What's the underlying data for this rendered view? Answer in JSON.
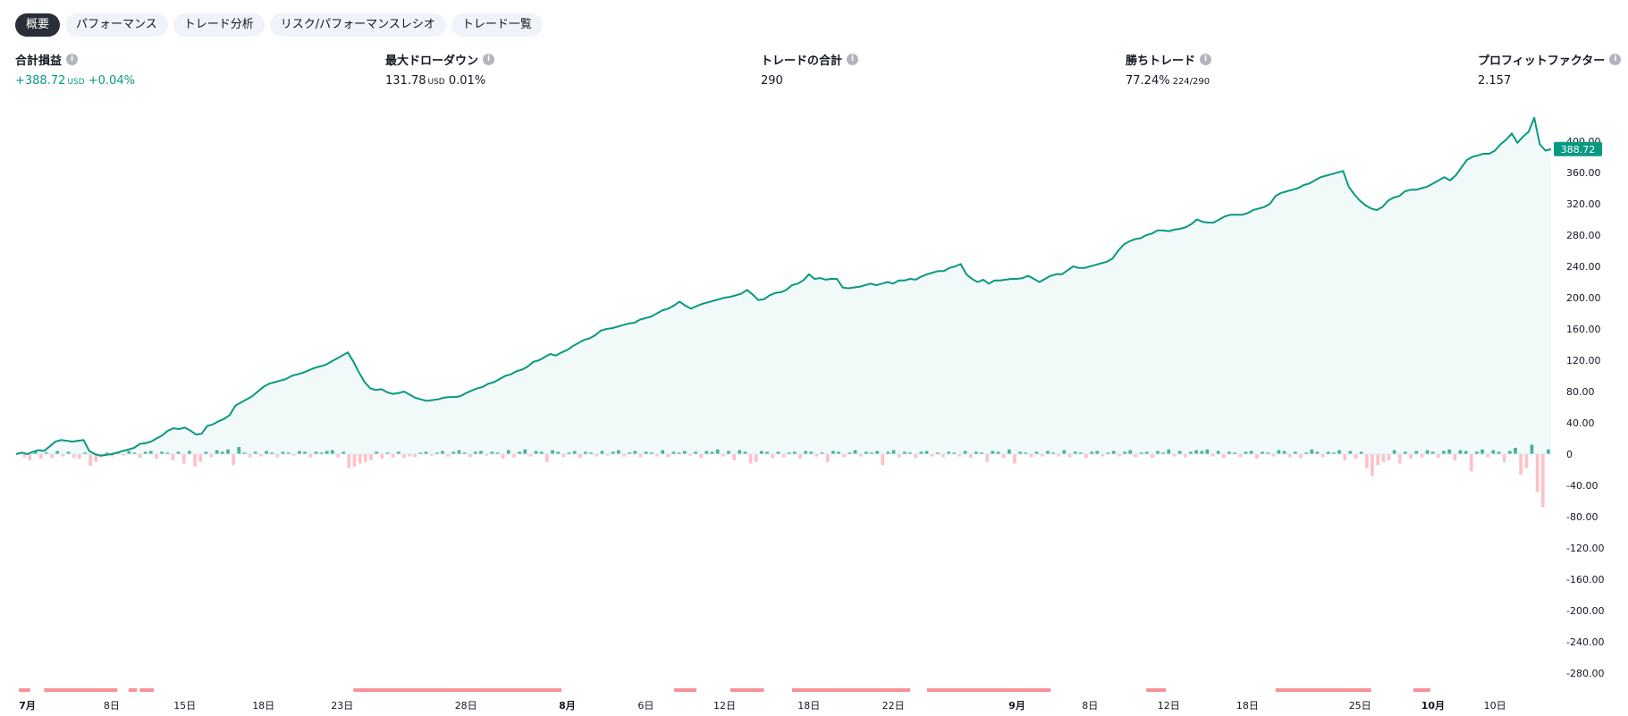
{
  "tabs": [
    {
      "label": "概要",
      "active": true
    },
    {
      "label": "パフォーマンス",
      "active": false
    },
    {
      "label": "トレード分析",
      "active": false
    },
    {
      "label": "リスク/パフォーマンスレシオ",
      "active": false
    },
    {
      "label": "トレード一覧",
      "active": false
    }
  ],
  "metrics": {
    "net_profit": {
      "title": "合計損益",
      "value": "+388.72",
      "unit": "USD",
      "pct": "+0.04%"
    },
    "max_drawdown": {
      "title": "最大ドローダウン",
      "value": "131.78",
      "unit": "USD",
      "pct": "0.01%"
    },
    "total_trades": {
      "title": "トレードの合計",
      "value": "290"
    },
    "winning_trades": {
      "title": "勝ちトレード",
      "value": "77.24%",
      "detail": "224/290"
    },
    "profit_factor": {
      "title": "プロフィットファクター",
      "value": "2.157"
    }
  },
  "colors": {
    "accent": "#089981",
    "loss": "#f23645",
    "tab_active": "#2a2e39"
  },
  "icons": {
    "info": "info-icon"
  },
  "chart_data": {
    "type": "line",
    "ylim": [
      -300,
      430
    ],
    "yticks": [
      "400.00",
      "360.00",
      "320.00",
      "280.00",
      "240.00",
      "200.00",
      "160.00",
      "120.00",
      "80.00",
      "40.00",
      "0",
      "-40.00",
      "-80.00",
      "-120.00",
      "-160.00",
      "-200.00",
      "-240.00",
      "-280.00"
    ],
    "ytick_values": [
      400,
      360,
      320,
      280,
      240,
      200,
      160,
      120,
      80,
      40,
      0,
      -40,
      -80,
      -120,
      -160,
      -200,
      -240,
      -280
    ],
    "xticks": [
      {
        "label": "7月",
        "bold": true,
        "index": 2
      },
      {
        "label": "8日",
        "bold": false,
        "index": 17
      },
      {
        "label": "15日",
        "bold": false,
        "index": 30
      },
      {
        "label": "18日",
        "bold": false,
        "index": 44
      },
      {
        "label": "23日",
        "bold": false,
        "index": 58
      },
      {
        "label": "28日",
        "bold": false,
        "index": 80
      },
      {
        "label": "8月",
        "bold": true,
        "index": 98
      },
      {
        "label": "6日",
        "bold": false,
        "index": 112
      },
      {
        "label": "12日",
        "bold": false,
        "index": 126
      },
      {
        "label": "18日",
        "bold": false,
        "index": 141
      },
      {
        "label": "22日",
        "bold": false,
        "index": 156
      },
      {
        "label": "9月",
        "bold": true,
        "index": 178
      },
      {
        "label": "8日",
        "bold": false,
        "index": 191
      },
      {
        "label": "12日",
        "bold": false,
        "index": 205
      },
      {
        "label": "18日",
        "bold": false,
        "index": 219
      },
      {
        "label": "25日",
        "bold": false,
        "index": 239
      },
      {
        "label": "10月",
        "bold": true,
        "index": 252
      },
      {
        "label": "10日",
        "bold": false,
        "index": 263
      }
    ],
    "equity": [
      0,
      2,
      0,
      3,
      5,
      4,
      10,
      16,
      18,
      17,
      16,
      17,
      18,
      4,
      0,
      -2,
      -1,
      0,
      2,
      4,
      6,
      8,
      13,
      14,
      16,
      20,
      24,
      30,
      33,
      32,
      34,
      30,
      25,
      26,
      36,
      38,
      42,
      45,
      50,
      62,
      66,
      70,
      74,
      80,
      86,
      90,
      92,
      94,
      96,
      100,
      102,
      104,
      107,
      110,
      112,
      114,
      118,
      122,
      126,
      130,
      118,
      104,
      92,
      84,
      82,
      83,
      79,
      77,
      78,
      80,
      76,
      72,
      70,
      68,
      69,
      70,
      72,
      73,
      73,
      74,
      78,
      81,
      84,
      86,
      90,
      92,
      96,
      100,
      102,
      106,
      108,
      112,
      118,
      120,
      124,
      128,
      126,
      130,
      133,
      138,
      142,
      146,
      148,
      152,
      158,
      160,
      161,
      163,
      165,
      167,
      168,
      172,
      174,
      176,
      180,
      184,
      186,
      190,
      195,
      190,
      186,
      189,
      192,
      194,
      196,
      198,
      200,
      201,
      203,
      205,
      210,
      204,
      197,
      198,
      203,
      206,
      207,
      210,
      216,
      218,
      222,
      230,
      224,
      225,
      223,
      224,
      224,
      213,
      212,
      213,
      214,
      216,
      218,
      216,
      218,
      220,
      218,
      222,
      222,
      224,
      223,
      227,
      230,
      232,
      234,
      234,
      238,
      240,
      243,
      230,
      224,
      220,
      223,
      218,
      222,
      222,
      223,
      224,
      224,
      225,
      228,
      224,
      220,
      224,
      228,
      230,
      230,
      235,
      240,
      238,
      238,
      240,
      242,
      244,
      246,
      250,
      260,
      268,
      272,
      275,
      276,
      280,
      282,
      286,
      286,
      285,
      287,
      288,
      290,
      294,
      300,
      297,
      296,
      296,
      300,
      304,
      306,
      306,
      306,
      308,
      312,
      314,
      316,
      320,
      330,
      334,
      336,
      338,
      340,
      344,
      346,
      350,
      354,
      356,
      358,
      360,
      362,
      342,
      332,
      324,
      318,
      314,
      312,
      316,
      324,
      328,
      330,
      336,
      338,
      338,
      340,
      342,
      346,
      350,
      354,
      350,
      356,
      366,
      376,
      380,
      382,
      384,
      384,
      388,
      396,
      402,
      410,
      398,
      406,
      412,
      430,
      396,
      388,
      390
    ],
    "bars": [
      2,
      -4,
      -8,
      3,
      -6,
      2,
      -5,
      4,
      -3,
      3,
      -5,
      -6,
      2,
      -15,
      -10,
      -4,
      2,
      -3,
      3,
      -2,
      4,
      2,
      -5,
      3,
      4,
      -6,
      3,
      2,
      -8,
      3,
      -12,
      4,
      -16,
      -10,
      3,
      -4,
      5,
      3,
      6,
      -14,
      9,
      2,
      -4,
      3,
      -3,
      4,
      2,
      -4,
      3,
      2,
      -2,
      4,
      3,
      -4,
      3,
      2,
      4,
      5,
      -4,
      3,
      -18,
      -16,
      -12,
      -10,
      -8,
      3,
      -6,
      2,
      -4,
      3,
      -5,
      -3,
      -4,
      2,
      3,
      -2,
      2,
      4,
      -3,
      3,
      5,
      2,
      -4,
      3,
      4,
      -2,
      3,
      2,
      -6,
      5,
      -4,
      3,
      6,
      -3,
      4,
      3,
      -10,
      5,
      3,
      -4,
      2,
      4,
      -5,
      3,
      2,
      -3,
      4,
      -2,
      3,
      5,
      -3,
      2,
      4,
      -4,
      3,
      2,
      -3,
      5,
      -4,
      3,
      2,
      4,
      -2,
      3,
      -5,
      4,
      3,
      6,
      -3,
      4,
      -8,
      5,
      3,
      -12,
      -10,
      4,
      3,
      -5,
      3,
      -4,
      2,
      3,
      -6,
      4,
      3,
      -3,
      2,
      -10,
      4,
      3,
      -4,
      2,
      5,
      -3,
      3,
      2,
      4,
      -14,
      3,
      5,
      -4,
      3,
      2,
      -5,
      3,
      4,
      -3,
      2,
      -4,
      3,
      2,
      -3,
      4,
      -5,
      3,
      2,
      -10,
      4,
      3,
      -5,
      6,
      -12,
      3,
      2,
      -4,
      3,
      -3,
      4,
      2,
      -3,
      5,
      -4,
      3,
      2,
      -5,
      3,
      4,
      -3,
      2,
      4,
      -3,
      3,
      5,
      -4,
      2,
      3,
      -5,
      4,
      2,
      6,
      -3,
      4,
      -4,
      3,
      5,
      4,
      6,
      -3,
      4,
      -5,
      3,
      2,
      -4,
      3,
      4,
      -6,
      3,
      2,
      -3,
      5,
      4,
      -4,
      3,
      -5,
      2,
      6,
      3,
      -4,
      3,
      2,
      5,
      -8,
      4,
      -6,
      3,
      -18,
      -28,
      -14,
      -10,
      -8,
      5,
      -12,
      3,
      -6,
      4,
      -4,
      5,
      3,
      -5,
      4,
      6,
      -8,
      5,
      4,
      -22,
      3,
      6,
      -4,
      5,
      3,
      -10,
      4,
      8,
      -26,
      -18,
      12,
      -48,
      -68,
      6
    ],
    "loss_periods": [
      [
        0.5,
        2.5
      ],
      [
        5,
        18
      ],
      [
        20,
        21.5
      ],
      [
        22,
        24.5
      ],
      [
        60,
        97
      ],
      [
        117,
        121
      ],
      [
        127,
        133
      ],
      [
        138,
        159
      ],
      [
        162,
        184
      ],
      [
        201,
        204.5
      ],
      [
        224,
        241
      ],
      [
        248.5,
        251.5
      ]
    ],
    "last_value_label": "388.72"
  }
}
